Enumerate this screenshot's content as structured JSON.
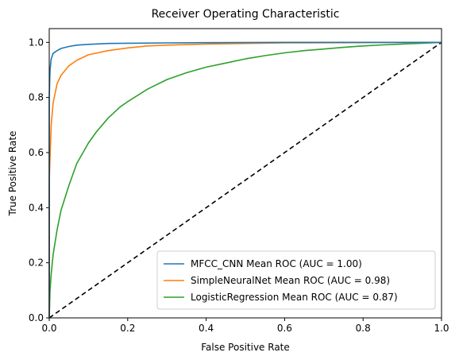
{
  "chart_data": {
    "type": "line",
    "title": "Receiver Operating Characteristic",
    "xlabel": "False Positive Rate",
    "ylabel": "True Positive Rate",
    "xlim": [
      0,
      1
    ],
    "ylim": [
      0,
      1.05
    ],
    "xticks": [
      "0.0",
      "0.2",
      "0.4",
      "0.6",
      "0.8",
      "1.0"
    ],
    "yticks": [
      "0.0",
      "0.2",
      "0.4",
      "0.6",
      "0.8",
      "1.0"
    ],
    "grid": false,
    "legend_placement": "lower-right",
    "series": [
      {
        "name": "MFCC_CNN Mean ROC (AUC = 1.00)",
        "color": "#1f77b4",
        "x": [
          0,
          0.0,
          0.002,
          0.005,
          0.01,
          0.02,
          0.03,
          0.05,
          0.07,
          0.1,
          0.15,
          0.2,
          0.3,
          0.4,
          0.6,
          0.8,
          1.0
        ],
        "y": [
          0,
          0.8,
          0.9,
          0.94,
          0.96,
          0.97,
          0.978,
          0.985,
          0.99,
          0.993,
          0.996,
          0.997,
          0.998,
          0.999,
          1.0,
          1.0,
          1.0
        ]
      },
      {
        "name": "SimpleNeuralNet Mean ROC (AUC = 0.98)",
        "color": "#ff7f0e",
        "x": [
          0,
          0.0,
          0.005,
          0.01,
          0.02,
          0.03,
          0.05,
          0.07,
          0.1,
          0.15,
          0.2,
          0.25,
          0.3,
          0.4,
          0.5,
          0.6,
          0.8,
          1.0
        ],
        "y": [
          0,
          0.5,
          0.7,
          0.78,
          0.85,
          0.88,
          0.915,
          0.935,
          0.955,
          0.97,
          0.98,
          0.987,
          0.99,
          0.994,
          0.996,
          0.998,
          0.999,
          1.0
        ]
      },
      {
        "name": "LogisticRegression Mean ROC (AUC = 0.87)",
        "color": "#2ca02c",
        "x": [
          0,
          0.002,
          0.005,
          0.01,
          0.02,
          0.03,
          0.05,
          0.07,
          0.09,
          0.1,
          0.12,
          0.15,
          0.18,
          0.2,
          0.25,
          0.3,
          0.35,
          0.4,
          0.45,
          0.5,
          0.55,
          0.6,
          0.65,
          0.7,
          0.75,
          0.8,
          0.85,
          0.9,
          0.95,
          1.0
        ],
        "y": [
          0,
          0.1,
          0.16,
          0.23,
          0.32,
          0.39,
          0.48,
          0.56,
          0.61,
          0.635,
          0.675,
          0.725,
          0.765,
          0.785,
          0.83,
          0.865,
          0.89,
          0.91,
          0.925,
          0.94,
          0.952,
          0.962,
          0.97,
          0.976,
          0.982,
          0.987,
          0.991,
          0.994,
          0.997,
          1.0
        ]
      },
      {
        "name": "",
        "color": "#000000",
        "dashed": true,
        "x": [
          0,
          1
        ],
        "y": [
          0,
          1
        ]
      }
    ]
  }
}
